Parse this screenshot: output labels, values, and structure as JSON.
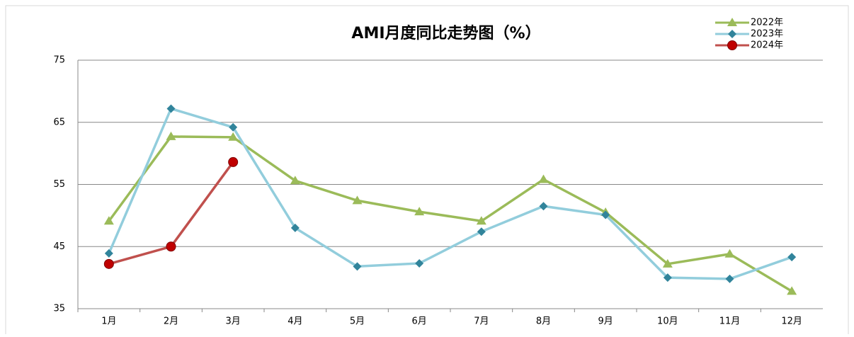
{
  "chart_data": {
    "type": "line",
    "title": "AMI月度同比走势图（%）",
    "categories": [
      "1月",
      "2月",
      "3月",
      "4月",
      "5月",
      "6月",
      "7月",
      "8月",
      "9月",
      "10月",
      "11月",
      "12月"
    ],
    "series": [
      {
        "name": "2022年",
        "color": "#9bbb59",
        "marker": "triangle",
        "values": [
          49.1,
          62.7,
          62.6,
          55.6,
          52.4,
          50.6,
          49.1,
          55.8,
          50.5,
          42.2,
          43.8,
          37.8
        ]
      },
      {
        "name": "2023年",
        "color": "#92cddc",
        "marker": "diamond",
        "values": [
          43.9,
          67.2,
          64.2,
          48,
          41.8,
          42.3,
          47.4,
          51.5,
          50.1,
          40,
          39.8,
          43.3
        ]
      },
      {
        "name": "2024年",
        "color": "#c0504d",
        "marker": "circle",
        "values": [
          42.2,
          45,
          58.6,
          null,
          null,
          null,
          null,
          null,
          null,
          null,
          null,
          null
        ]
      }
    ],
    "ylim": [
      35,
      75
    ],
    "yticks": [
      35,
      45,
      55,
      65,
      75
    ],
    "grid": true,
    "legend": "top-right"
  }
}
